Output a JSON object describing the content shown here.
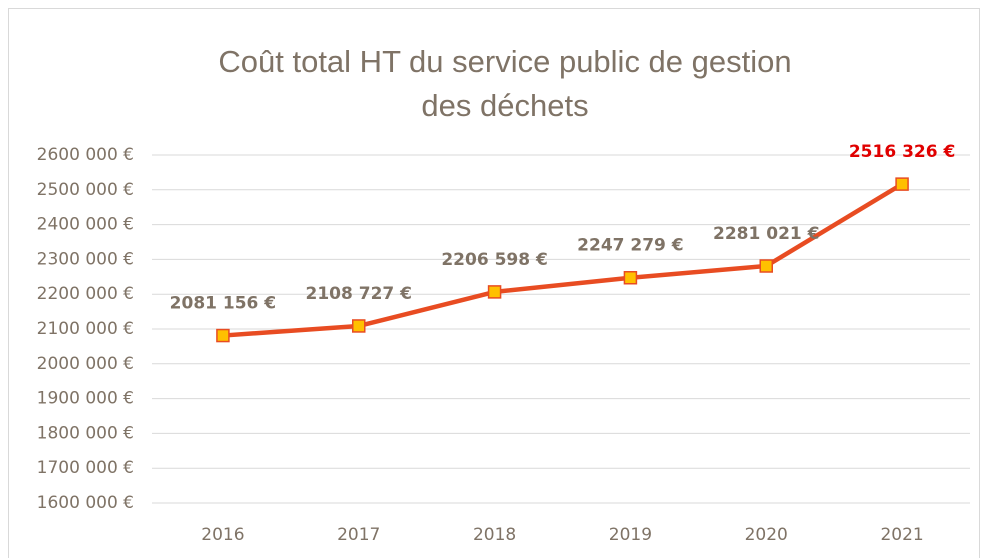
{
  "chart_data": {
    "type": "line",
    "title": "Coût total HT du service public de gestion des déchets",
    "categories": [
      "2016",
      "2017",
      "2018",
      "2019",
      "2020",
      "2021"
    ],
    "series": [
      {
        "name": "Coût total HT",
        "color": "#e84c22",
        "marker_color": "#ffc000",
        "values": [
          2081156,
          2108727,
          2206598,
          2247279,
          2281021,
          2516326
        ],
        "value_labels": [
          "2081 156 €",
          "2108 727 €",
          "2206 598 €",
          "2247 279 €",
          "2281 021 €",
          "2516 326 €"
        ],
        "value_label_colors": [
          "#7f7366",
          "#7f7366",
          "#7f7366",
          "#7f7366",
          "#7f7366",
          "#e00000"
        ]
      }
    ],
    "ylim": [
      1600000,
      2600000
    ],
    "yticks": [
      {
        "value": 1600000,
        "label": "1600 000 €"
      },
      {
        "value": 1700000,
        "label": "1700 000 €"
      },
      {
        "value": 1800000,
        "label": "1800 000 €"
      },
      {
        "value": 1900000,
        "label": "1900 000 €"
      },
      {
        "value": 2000000,
        "label": "2000 000 €"
      },
      {
        "value": 2100000,
        "label": "2100 000 €"
      },
      {
        "value": 2200000,
        "label": "2200 000 €"
      },
      {
        "value": 2300000,
        "label": "2300 000 €"
      },
      {
        "value": 2400000,
        "label": "2400 000 €"
      },
      {
        "value": 2500000,
        "label": "2500 000 €"
      },
      {
        "value": 2600000,
        "label": "2600 000 €"
      }
    ],
    "grid": true
  }
}
